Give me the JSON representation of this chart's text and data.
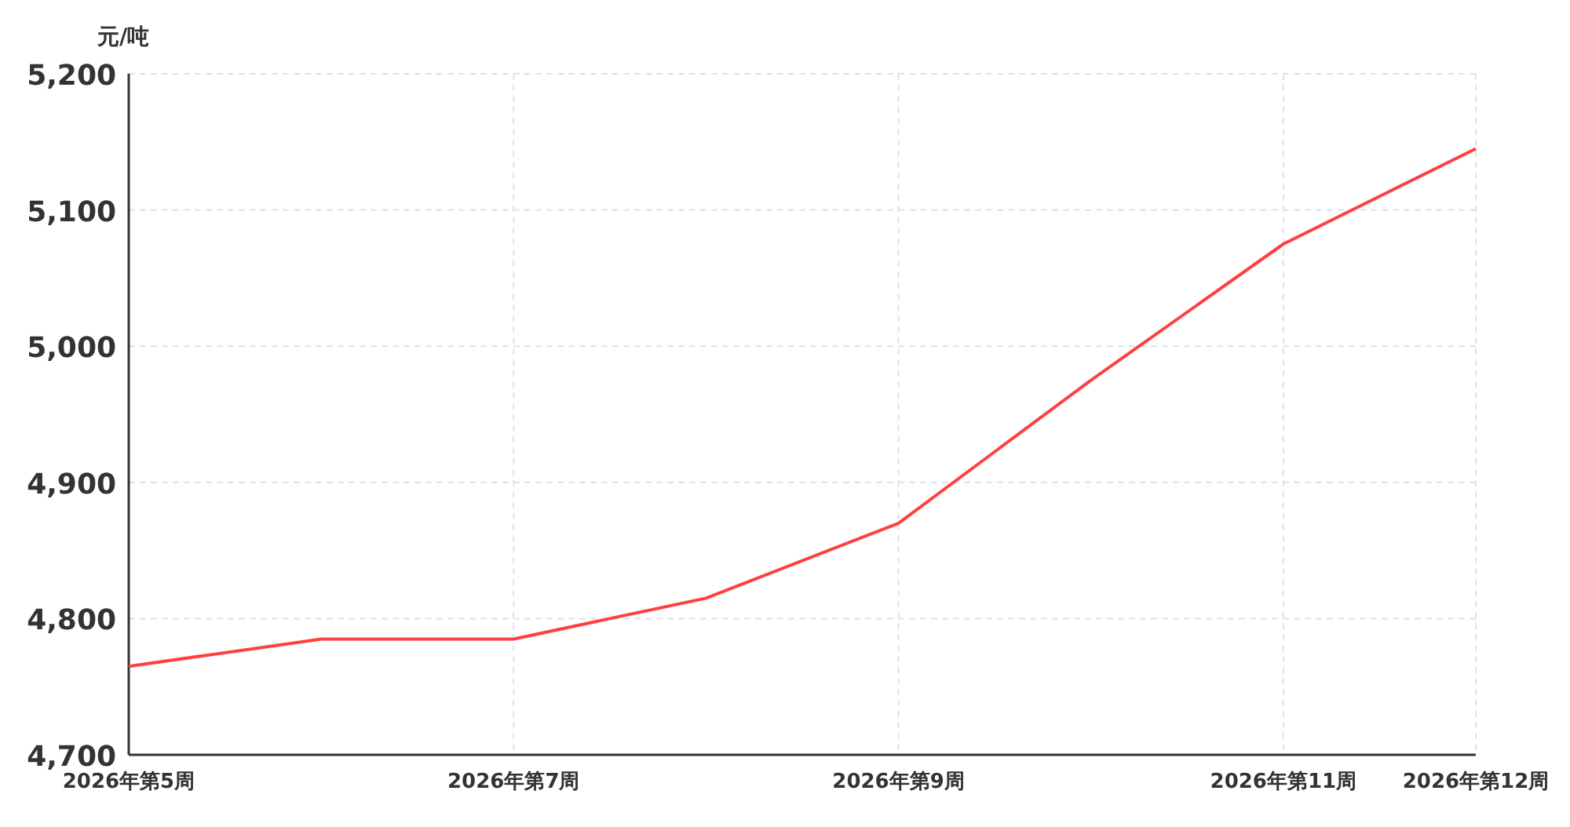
{
  "chart_data": {
    "type": "line",
    "ylabel": "元/吨",
    "categories": [
      "2026年第5周",
      null,
      "2026年第7周",
      null,
      "2026年第9周",
      null,
      "2026年第11周",
      "2026年第12周"
    ],
    "series": [
      {
        "color": "#ff4040",
        "values": [
          4765,
          4785,
          4785,
          4815,
          4870,
          4975,
          5075,
          5145
        ]
      }
    ],
    "ylim": [
      4700,
      5200
    ],
    "yticks": [
      {
        "value": 4700,
        "label": "4,700"
      },
      {
        "value": 4800,
        "label": "4,800"
      },
      {
        "value": 4900,
        "label": "4,900"
      },
      {
        "value": 5000,
        "label": "5,000"
      },
      {
        "value": 5100,
        "label": "5,100"
      },
      {
        "value": 5200,
        "label": "5,200"
      }
    ],
    "grid": true
  }
}
